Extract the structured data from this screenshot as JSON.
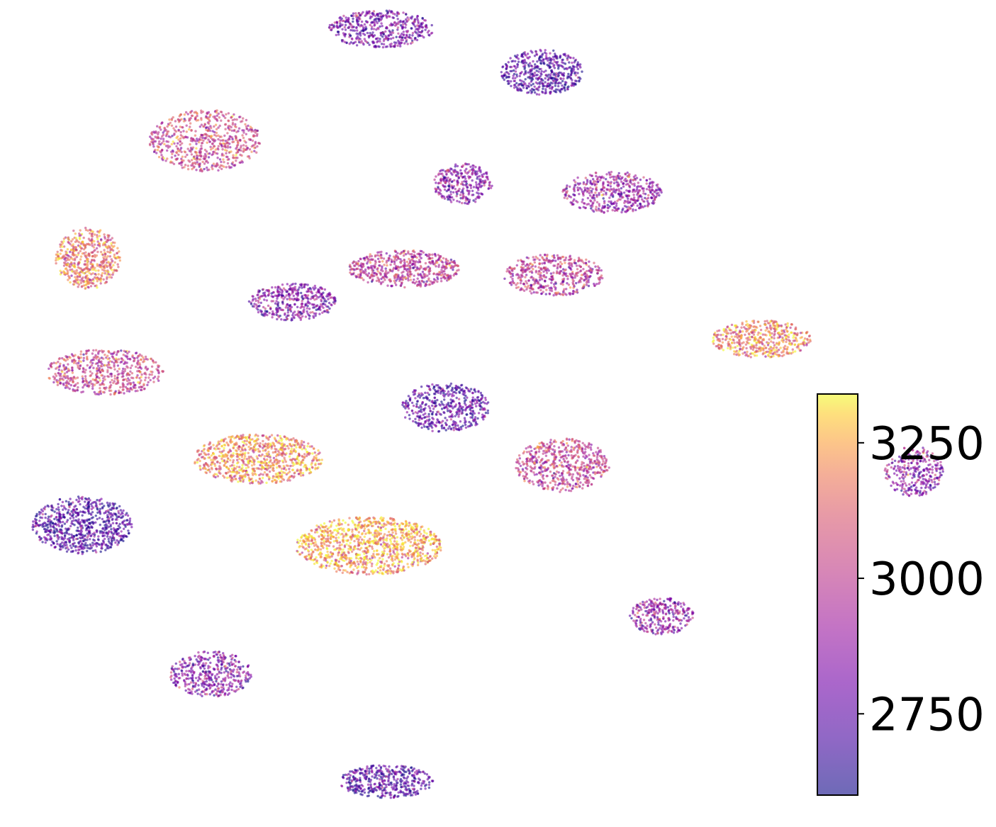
{
  "chart_data": {
    "type": "scatter",
    "title": "",
    "xlabel": "",
    "ylabel": "",
    "axes_visible": false,
    "colormap": "plasma",
    "point_alpha": 0.6,
    "colorbar": {
      "vmin": 2600,
      "vmax": 3340,
      "ticks": [
        2750,
        3000,
        3250
      ],
      "tick_labels": [
        "2750",
        "3000",
        "3250"
      ]
    },
    "clusters": [
      {
        "cx": 0.0,
        "cy": 9.3,
        "rx": 0.9,
        "ry": 0.45,
        "mean": 2800,
        "n": 480
      },
      {
        "cx": 2.75,
        "cy": 8.25,
        "rx": 0.7,
        "ry": 0.55,
        "mean": 2720,
        "n": 480
      },
      {
        "cx": -3.0,
        "cy": 6.6,
        "rx": 0.95,
        "ry": 0.75,
        "mean": 3030,
        "n": 650
      },
      {
        "cx": 1.4,
        "cy": 5.55,
        "rx": 0.5,
        "ry": 0.5,
        "mean": 2860,
        "n": 300
      },
      {
        "cx": 3.95,
        "cy": 5.35,
        "rx": 0.85,
        "ry": 0.5,
        "mean": 2890,
        "n": 480
      },
      {
        "cx": -5.0,
        "cy": 3.75,
        "rx": 0.55,
        "ry": 0.75,
        "mean": 3150,
        "n": 520
      },
      {
        "cx": 0.4,
        "cy": 3.5,
        "rx": 0.95,
        "ry": 0.45,
        "mean": 2980,
        "n": 560
      },
      {
        "cx": 2.95,
        "cy": 3.35,
        "rx": 0.85,
        "ry": 0.5,
        "mean": 2980,
        "n": 480
      },
      {
        "cx": -1.5,
        "cy": 2.7,
        "rx": 0.75,
        "ry": 0.45,
        "mean": 2830,
        "n": 420
      },
      {
        "cx": 6.5,
        "cy": 1.8,
        "rx": 0.85,
        "ry": 0.45,
        "mean": 3170,
        "n": 480
      },
      {
        "cx": -4.7,
        "cy": 1.0,
        "rx": 1.0,
        "ry": 0.55,
        "mean": 3020,
        "n": 560
      },
      {
        "cx": 1.1,
        "cy": 0.15,
        "rx": 0.75,
        "ry": 0.6,
        "mean": 2740,
        "n": 480
      },
      {
        "cx": -2.1,
        "cy": -1.1,
        "rx": 1.1,
        "ry": 0.6,
        "mean": 3190,
        "n": 820
      },
      {
        "cx": 3.1,
        "cy": -1.25,
        "rx": 0.8,
        "ry": 0.65,
        "mean": 3010,
        "n": 560
      },
      {
        "cx": 9.1,
        "cy": -1.4,
        "rx": 0.5,
        "ry": 0.6,
        "mean": 2850,
        "n": 300
      },
      {
        "cx": -5.1,
        "cy": -2.7,
        "rx": 0.85,
        "ry": 0.7,
        "mean": 2720,
        "n": 720
      },
      {
        "cx": -0.2,
        "cy": -3.2,
        "rx": 1.25,
        "ry": 0.7,
        "mean": 3230,
        "n": 1100
      },
      {
        "cx": 4.8,
        "cy": -4.9,
        "rx": 0.55,
        "ry": 0.45,
        "mean": 2880,
        "n": 300
      },
      {
        "cx": -2.9,
        "cy": -6.3,
        "rx": 0.7,
        "ry": 0.55,
        "mean": 2830,
        "n": 420
      },
      {
        "cx": 0.1,
        "cy": -8.9,
        "rx": 0.8,
        "ry": 0.4,
        "mean": 2720,
        "n": 420
      }
    ],
    "xlim": [
      -6.5,
      10.5
    ],
    "ylim": [
      -10.0,
      10.0
    ]
  }
}
